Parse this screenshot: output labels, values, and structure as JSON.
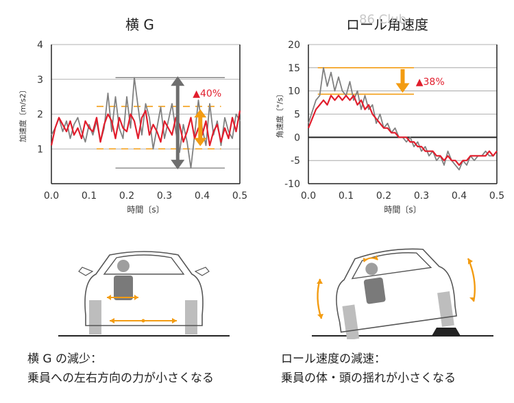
{
  "colors": {
    "red": "#e11d2c",
    "gray": "#808080",
    "orange": "#f39c12",
    "darkgray": "#6e6e6e",
    "grid": "#999999",
    "axis": "#222222"
  },
  "watermark": "86 Club",
  "chart_data": [
    {
      "type": "line",
      "title": "横 G",
      "xlabel": "時間〔s〕",
      "ylabel": "加速度〔m/s2〕",
      "xlim": [
        0,
        0.5
      ],
      "ylim": [
        0,
        4
      ],
      "x_ticks": [
        "0.0",
        "0.1",
        "0.2",
        "0.3",
        "0.4",
        "0.5"
      ],
      "y_ticks": [
        "0",
        "1",
        "2",
        "3",
        "4"
      ],
      "grid": true,
      "annotation": "▲40%",
      "reference_lines": {
        "gray_max": 3.05,
        "gray_min": 0.45,
        "red_max": 2.22,
        "red_min": 1.0
      },
      "series": [
        {
          "color": "gray",
          "x": [
            0,
            0.01,
            0.02,
            0.03,
            0.04,
            0.05,
            0.06,
            0.07,
            0.08,
            0.09,
            0.1,
            0.11,
            0.12,
            0.13,
            0.14,
            0.15,
            0.16,
            0.17,
            0.18,
            0.19,
            0.2,
            0.21,
            0.22,
            0.23,
            0.24,
            0.25,
            0.26,
            0.27,
            0.28,
            0.29,
            0.3,
            0.31,
            0.32,
            0.33,
            0.34,
            0.35,
            0.36,
            0.37,
            0.38,
            0.39,
            0.4,
            0.41,
            0.42,
            0.43,
            0.44,
            0.45,
            0.46,
            0.47,
            0.48,
            0.49,
            0.5
          ],
          "y": [
            1.4,
            1.6,
            1.9,
            1.5,
            1.8,
            1.3,
            1.7,
            1.9,
            1.5,
            1.2,
            1.7,
            1.4,
            1.8,
            1.2,
            1.6,
            2.6,
            1.5,
            2.5,
            1.6,
            1.3,
            2.5,
            1.6,
            3.05,
            2.2,
            1.4,
            2.3,
            1.9,
            1.0,
            1.6,
            2.2,
            1.3,
            1.8,
            2.3,
            1.5,
            0.9,
            1.7,
            1.2,
            0.45,
            1.4,
            2.4,
            1.6,
            1.1,
            2.3,
            1.4,
            1.8,
            1.1,
            1.9,
            1.5,
            1.3,
            2.0,
            1.8
          ]
        },
        {
          "color": "red",
          "x": [
            0,
            0.01,
            0.02,
            0.03,
            0.04,
            0.05,
            0.06,
            0.07,
            0.08,
            0.09,
            0.1,
            0.11,
            0.12,
            0.13,
            0.14,
            0.15,
            0.16,
            0.17,
            0.18,
            0.19,
            0.2,
            0.21,
            0.22,
            0.23,
            0.24,
            0.25,
            0.26,
            0.27,
            0.28,
            0.29,
            0.3,
            0.31,
            0.32,
            0.33,
            0.34,
            0.35,
            0.36,
            0.37,
            0.38,
            0.39,
            0.4,
            0.41,
            0.42,
            0.43,
            0.44,
            0.45,
            0.46,
            0.47,
            0.48,
            0.49,
            0.5
          ],
          "y": [
            1.1,
            1.6,
            1.9,
            1.7,
            1.5,
            1.8,
            1.4,
            1.6,
            1.3,
            1.8,
            1.6,
            1.5,
            1.9,
            1.2,
            1.7,
            2.0,
            1.8,
            1.3,
            1.9,
            1.6,
            1.5,
            2.0,
            1.8,
            1.3,
            1.9,
            2.1,
            1.4,
            1.7,
            1.5,
            1.2,
            1.8,
            1.6,
            1.4,
            1.9,
            1.7,
            1.2,
            1.5,
            1.9,
            1.3,
            1.6,
            1.4,
            1.8,
            1.1,
            1.5,
            1.7,
            1.2,
            1.6,
            1.3,
            1.9,
            1.5,
            2.1
          ]
        }
      ]
    },
    {
      "type": "line",
      "title": "ロール角速度",
      "xlabel": "時間〔s〕",
      "ylabel": "角速度〔°/s〕",
      "xlim": [
        0,
        0.5
      ],
      "ylim": [
        -10,
        20
      ],
      "x_ticks": [
        "0.0",
        "0.1",
        "0.2",
        "0.3",
        "0.4",
        "0.5"
      ],
      "y_ticks": [
        "-10",
        "-5",
        "0",
        "5",
        "10",
        "15",
        "20"
      ],
      "grid": true,
      "annotation": "▲38%",
      "reference_lines": {
        "gray_max": 15.0,
        "red_max": 9.3
      },
      "series": [
        {
          "color": "gray",
          "x": [
            0,
            0.02,
            0.03,
            0.04,
            0.05,
            0.06,
            0.07,
            0.08,
            0.09,
            0.1,
            0.11,
            0.12,
            0.13,
            0.14,
            0.15,
            0.16,
            0.17,
            0.18,
            0.19,
            0.2,
            0.21,
            0.22,
            0.23,
            0.24,
            0.25,
            0.26,
            0.27,
            0.28,
            0.29,
            0.3,
            0.31,
            0.32,
            0.33,
            0.34,
            0.35,
            0.36,
            0.37,
            0.38,
            0.39,
            0.4,
            0.41,
            0.42,
            0.43,
            0.44,
            0.45,
            0.46,
            0.47,
            0.48,
            0.49,
            0.5
          ],
          "y": [
            3,
            8,
            9,
            15,
            11,
            14,
            10,
            13,
            10,
            9,
            12,
            8,
            10,
            6,
            9,
            6,
            7,
            3,
            5,
            2,
            3,
            1,
            2,
            0,
            0,
            -1,
            0,
            -2,
            -1,
            -3,
            -2,
            -4,
            -3,
            -5,
            -4,
            -6,
            -3,
            -5,
            -6,
            -7,
            -5,
            -6,
            -4,
            -5,
            -4,
            -4,
            -3,
            -4,
            -4,
            -3
          ]
        },
        {
          "color": "red",
          "x": [
            0,
            0.02,
            0.03,
            0.04,
            0.05,
            0.06,
            0.07,
            0.08,
            0.09,
            0.1,
            0.11,
            0.12,
            0.13,
            0.14,
            0.15,
            0.16,
            0.17,
            0.18,
            0.19,
            0.2,
            0.21,
            0.22,
            0.23,
            0.24,
            0.25,
            0.26,
            0.27,
            0.28,
            0.29,
            0.3,
            0.31,
            0.32,
            0.33,
            0.34,
            0.35,
            0.36,
            0.37,
            0.38,
            0.39,
            0.4,
            0.41,
            0.42,
            0.43,
            0.44,
            0.45,
            0.46,
            0.47,
            0.48,
            0.49,
            0.5
          ],
          "y": [
            2,
            6,
            7,
            8,
            7,
            9,
            8,
            9,
            8,
            9,
            8,
            9,
            7,
            8,
            6,
            7,
            5,
            4,
            3,
            2,
            2,
            1,
            1,
            0,
            0,
            0,
            -1,
            -1,
            -2,
            -2,
            -3,
            -3,
            -3,
            -4,
            -4,
            -5,
            -4,
            -5,
            -5,
            -6,
            -5,
            -5,
            -4,
            -4,
            -4,
            -4,
            -4,
            -3,
            -4,
            -3
          ]
        }
      ]
    }
  ],
  "captions": [
    {
      "line1": "横 G の減少：",
      "line2": "乗員への左右方向の力が小さくなる"
    },
    {
      "line1": "ロール速度の減速：",
      "line2": "乗員の体・頭の揺れが小さくなる"
    }
  ]
}
